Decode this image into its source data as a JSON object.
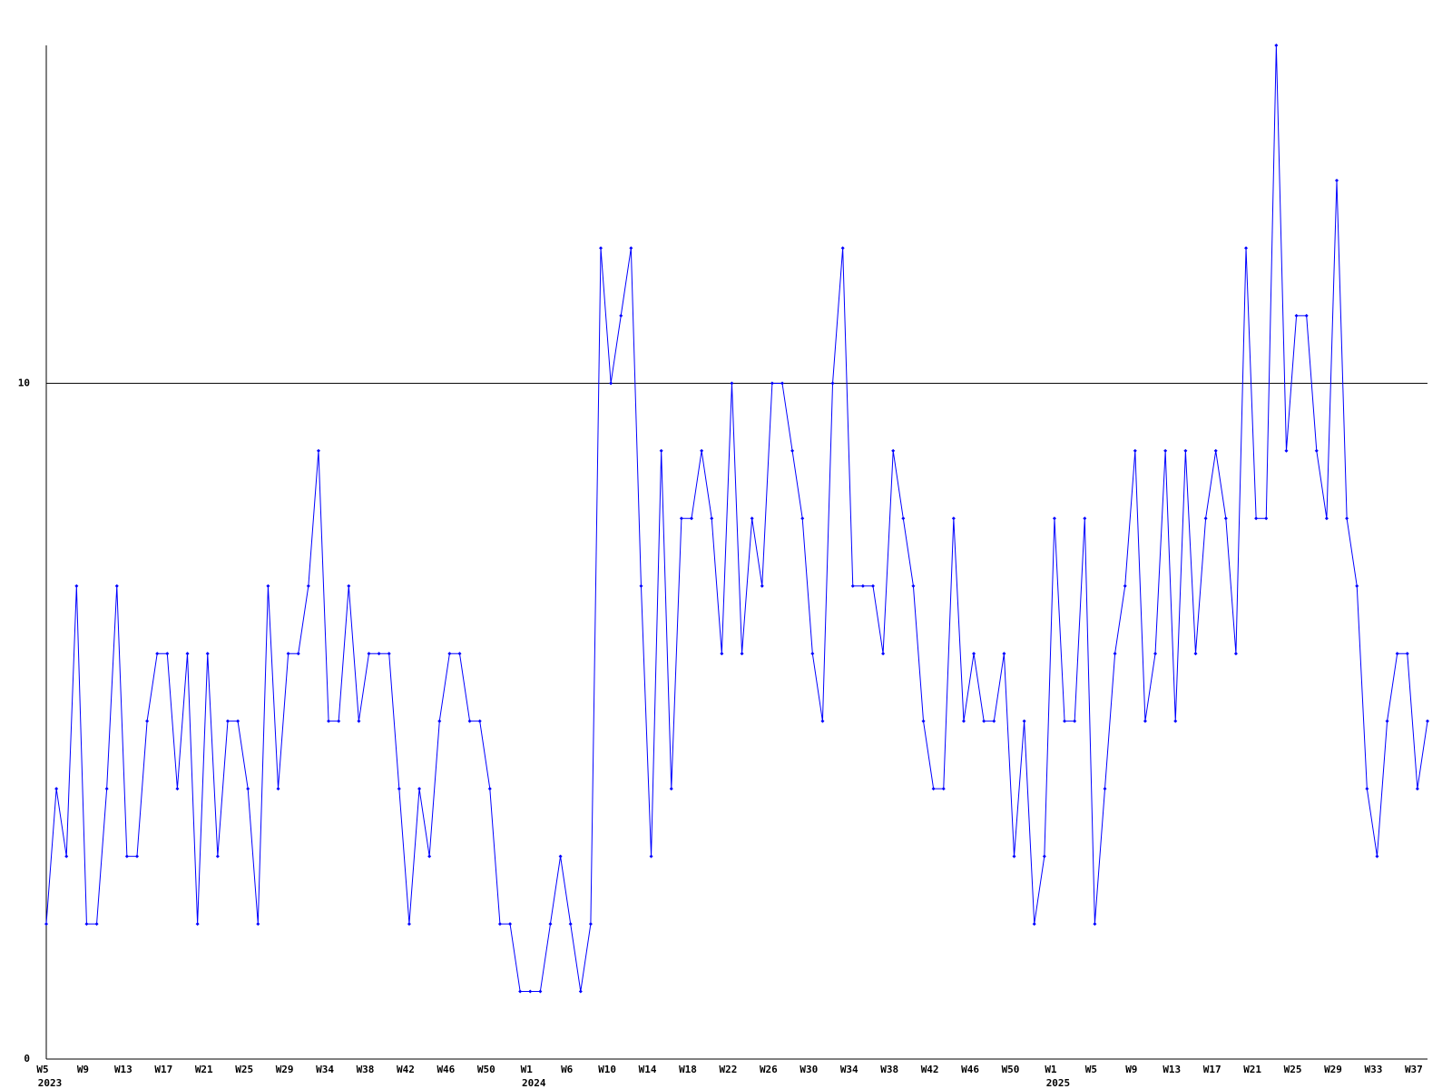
{
  "chart_data": {
    "type": "line",
    "color": "#0000ff",
    "ylim": [
      0,
      15
    ],
    "yticks": [
      0,
      10
    ],
    "grid": true,
    "categories": [
      "W5",
      null,
      null,
      null,
      "W9",
      null,
      null,
      null,
      "W13",
      null,
      null,
      null,
      "W17",
      null,
      null,
      null,
      "W21",
      null,
      null,
      null,
      "W25",
      null,
      null,
      null,
      "W29",
      null,
      null,
      null,
      "W34",
      null,
      null,
      null,
      "W38",
      null,
      null,
      null,
      "W42",
      null,
      null,
      null,
      "W46",
      null,
      null,
      null,
      "W50",
      null,
      null,
      null,
      "W1",
      null,
      null,
      null,
      "W6",
      null,
      null,
      null,
      "W10",
      null,
      null,
      null,
      "W14",
      null,
      null,
      null,
      "W18",
      null,
      null,
      null,
      "W22",
      null,
      null,
      null,
      "W26",
      null,
      null,
      null,
      "W30",
      null,
      null,
      null,
      "W34",
      null,
      null,
      null,
      "W38",
      null,
      null,
      null,
      "W42",
      null,
      null,
      null,
      "W46",
      null,
      null,
      null,
      "W50",
      null,
      null,
      null,
      "W1",
      null,
      null,
      null,
      "W5",
      null,
      null,
      null,
      "W9",
      null,
      null,
      null,
      "W13",
      null,
      null,
      null,
      "W17",
      null,
      null,
      null,
      "W21",
      null,
      null,
      null,
      "W25",
      null,
      null,
      null,
      "W29",
      null,
      null,
      null,
      "W33",
      null,
      null,
      null,
      "W37",
      null
    ],
    "years": [
      "2023",
      null,
      null,
      null,
      null,
      null,
      null,
      null,
      null,
      null,
      null,
      null,
      null,
      null,
      null,
      null,
      null,
      null,
      null,
      null,
      null,
      null,
      null,
      null,
      null,
      null,
      null,
      null,
      null,
      null,
      null,
      null,
      null,
      null,
      null,
      null,
      null,
      null,
      null,
      null,
      null,
      null,
      null,
      null,
      null,
      null,
      null,
      null,
      "2024",
      null,
      null,
      null,
      null,
      null,
      null,
      null,
      null,
      null,
      null,
      null,
      null,
      null,
      null,
      null,
      null,
      null,
      null,
      null,
      null,
      null,
      null,
      null,
      null,
      null,
      null,
      null,
      null,
      null,
      null,
      null,
      null,
      null,
      null,
      null,
      null,
      null,
      null,
      null,
      null,
      null,
      null,
      null,
      null,
      null,
      null,
      null,
      null,
      null,
      null,
      null,
      "2025",
      null,
      null,
      null,
      null,
      null,
      null,
      null,
      null,
      null,
      null,
      null,
      null,
      null,
      null,
      null,
      null,
      null,
      null,
      null,
      null,
      null,
      null,
      null,
      null,
      null,
      null,
      null,
      null,
      null,
      null,
      null,
      null,
      null,
      null,
      null,
      null,
      null
    ],
    "values": [
      2,
      4,
      3,
      7,
      2,
      2,
      4,
      7,
      3,
      3,
      5,
      6,
      6,
      4,
      6,
      2,
      6,
      3,
      5,
      5,
      4,
      2,
      7,
      4,
      6,
      6,
      7,
      9,
      5,
      5,
      7,
      5,
      6,
      6,
      6,
      4,
      2,
      4,
      3,
      5,
      6,
      6,
      5,
      5,
      4,
      2,
      2,
      1,
      1,
      1,
      2,
      3,
      2,
      1,
      2,
      12,
      10,
      11,
      12,
      7,
      3,
      9,
      4,
      8,
      8,
      9,
      8,
      6,
      10,
      6,
      8,
      7,
      10,
      10,
      9,
      8,
      6,
      5,
      10,
      12,
      7,
      7,
      7,
      6,
      9,
      8,
      7,
      5,
      4,
      4,
      8,
      5,
      6,
      5,
      5,
      6,
      3,
      5,
      2,
      3,
      8,
      5,
      5,
      8,
      2,
      4,
      6,
      7,
      9,
      5,
      6,
      9,
      5,
      9,
      6,
      8,
      9,
      8,
      6,
      12,
      8,
      8,
      15,
      9,
      11,
      11,
      9,
      8,
      13,
      8,
      7,
      4,
      3,
      5,
      6,
      6,
      4,
      5
    ]
  }
}
